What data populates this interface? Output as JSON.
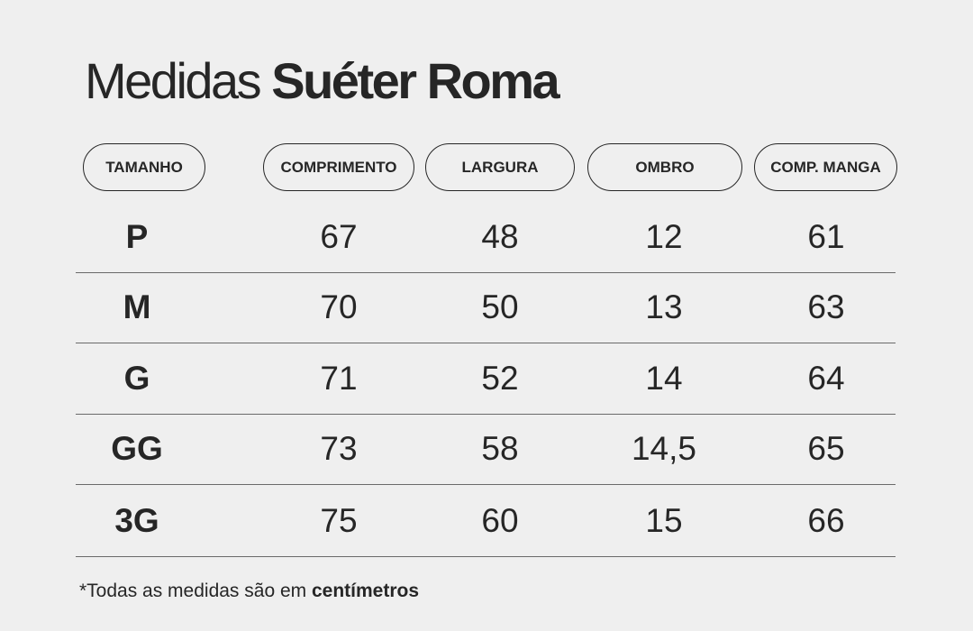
{
  "title": {
    "regular": "Medidas",
    "bold": "Suéter Roma"
  },
  "headers": [
    "TAMANHO",
    "COMPRIMENTO",
    "LARGURA",
    "OMBRO",
    "COMP. MANGA"
  ],
  "rows": [
    [
      "P",
      "67",
      "48",
      "12",
      "61"
    ],
    [
      "M",
      "70",
      "50",
      "13",
      "63"
    ],
    [
      "G",
      "71",
      "52",
      "14",
      "64"
    ],
    [
      "GG",
      "73",
      "58",
      "14,5",
      "65"
    ],
    [
      "3G",
      "75",
      "60",
      "15",
      "66"
    ]
  ],
  "footnote": {
    "text": "*Todas as medidas são em",
    "bold": "centímetros"
  }
}
